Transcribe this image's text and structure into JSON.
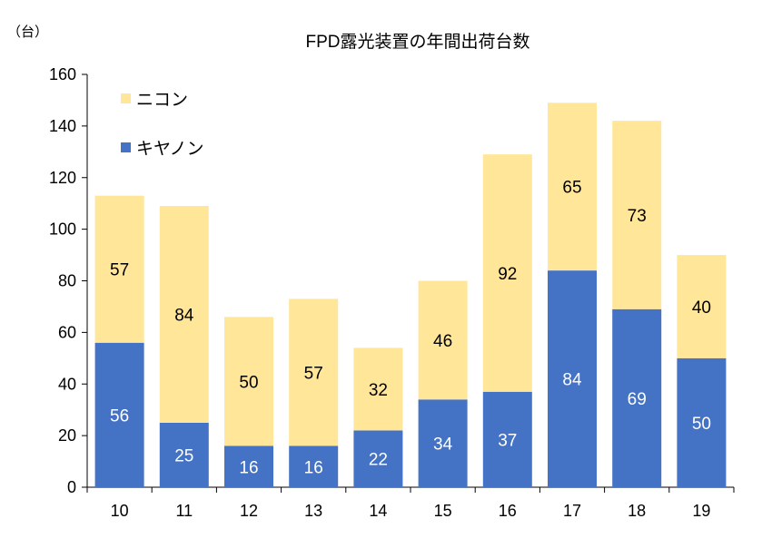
{
  "chart_data": {
    "type": "bar",
    "stacked": true,
    "title": "FPD露光装置の年間出荷台数",
    "unit_label": "（台）",
    "categories": [
      "10",
      "11",
      "12",
      "13",
      "14",
      "15",
      "16",
      "17",
      "18",
      "19"
    ],
    "series": [
      {
        "name": "キヤノン",
        "color": "#4472c4",
        "label_color": "#ffffff",
        "values": [
          56,
          25,
          16,
          16,
          22,
          34,
          37,
          84,
          69,
          50
        ]
      },
      {
        "name": "ニコン",
        "color": "#ffe699",
        "label_color": "#000000",
        "values": [
          57,
          84,
          50,
          57,
          32,
          46,
          92,
          65,
          73,
          40
        ]
      }
    ],
    "ylim": [
      0,
      160
    ],
    "yticks": [
      0,
      20,
      40,
      60,
      80,
      100,
      120,
      140,
      160
    ],
    "grid": false,
    "legend": "top-left"
  }
}
